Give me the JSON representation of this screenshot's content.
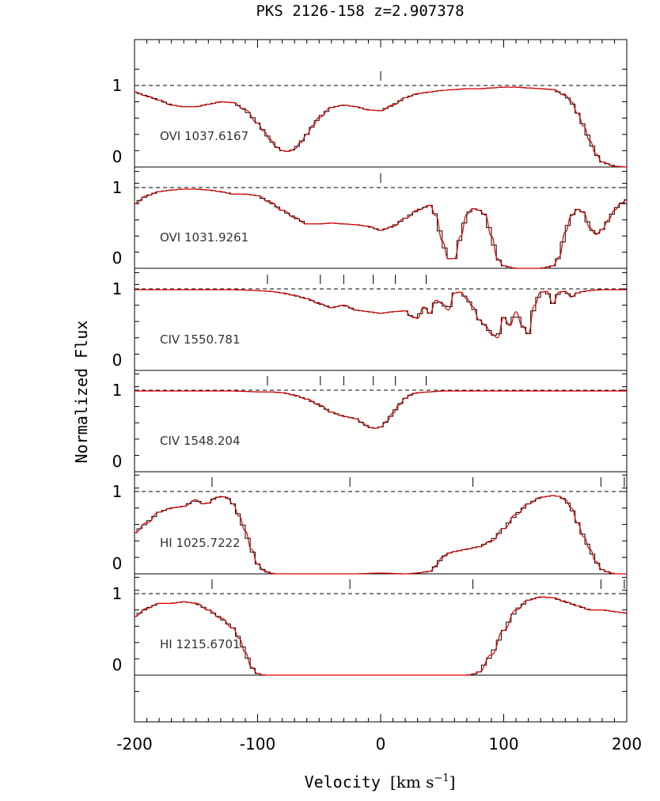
{
  "chart_data": {
    "type": "line",
    "title": "PKS 2126-158 z=2.907378",
    "xlabel": "Velocity",
    "xlabel_unit_prefix": "[km s",
    "xlabel_unit_exp": "−1",
    "xlabel_unit_suffix": "]",
    "ylabel": "Normalized Flux",
    "xlim": [
      -200,
      200
    ],
    "x_ticks": [
      "-200",
      "-100",
      "0",
      "100",
      "200"
    ],
    "x_tick_values": [
      -200,
      -100,
      0,
      100,
      200
    ],
    "y_tick_labels": [
      "1",
      "0"
    ],
    "outer_y_range": [
      -0.55,
      1.45
    ],
    "colors": {
      "data": "#000000",
      "model": "#e00000",
      "continuum": "#000000"
    },
    "series_legend": [
      "data (histogram)",
      "fit model"
    ],
    "panels": [
      {
        "label": "OVI 1037.6167",
        "component_marks": [
          0
        ],
        "x": [
          -200,
          -190,
          -180,
          -170,
          -160,
          -150,
          -140,
          -130,
          -120,
          -110,
          -100,
          -95,
          -90,
          -85,
          -80,
          -75,
          -70,
          -65,
          -60,
          -55,
          -50,
          -40,
          -30,
          -20,
          -10,
          0,
          10,
          20,
          30,
          40,
          50,
          60,
          70,
          80,
          90,
          100,
          110,
          120,
          130,
          140,
          150,
          155,
          160,
          165,
          170,
          175,
          180,
          190,
          200
        ],
        "y": [
          0.92,
          0.87,
          0.82,
          0.76,
          0.74,
          0.74,
          0.77,
          0.8,
          0.79,
          0.7,
          0.54,
          0.44,
          0.34,
          0.25,
          0.2,
          0.19,
          0.22,
          0.3,
          0.4,
          0.51,
          0.61,
          0.73,
          0.76,
          0.74,
          0.7,
          0.69,
          0.76,
          0.85,
          0.9,
          0.92,
          0.94,
          0.95,
          0.96,
          0.96,
          0.97,
          0.98,
          0.98,
          0.97,
          0.96,
          0.95,
          0.88,
          0.8,
          0.66,
          0.5,
          0.32,
          0.16,
          0.06,
          0.01,
          0.0
        ]
      },
      {
        "label": "OVI 1031.9261",
        "component_marks": [
          0
        ],
        "x": [
          -200,
          -190,
          -180,
          -170,
          -160,
          -150,
          -140,
          -130,
          -120,
          -110,
          -100,
          -90,
          -80,
          -70,
          -60,
          -50,
          -40,
          -30,
          -20,
          -10,
          0,
          10,
          20,
          30,
          40,
          45,
          50,
          55,
          60,
          65,
          70,
          75,
          80,
          85,
          90,
          95,
          100,
          110,
          120,
          130,
          140,
          145,
          150,
          155,
          160,
          165,
          170,
          175,
          180,
          185,
          190,
          195,
          200
        ],
        "y": [
          0.8,
          0.9,
          0.95,
          0.97,
          0.98,
          0.98,
          0.97,
          0.95,
          0.92,
          0.92,
          0.9,
          0.82,
          0.72,
          0.63,
          0.55,
          0.55,
          0.56,
          0.55,
          0.54,
          0.52,
          0.47,
          0.52,
          0.62,
          0.72,
          0.78,
          0.65,
          0.34,
          0.12,
          0.12,
          0.4,
          0.67,
          0.74,
          0.72,
          0.66,
          0.4,
          0.12,
          0.03,
          0.0,
          0.0,
          0.0,
          0.03,
          0.14,
          0.45,
          0.65,
          0.73,
          0.69,
          0.5,
          0.42,
          0.48,
          0.6,
          0.72,
          0.8,
          0.85
        ]
      },
      {
        "label": "CIV 1550.781",
        "component_marks": [
          -92,
          -49,
          -30,
          -6,
          12,
          37
        ],
        "x": [
          -200,
          -180,
          -160,
          -140,
          -120,
          -100,
          -90,
          -80,
          -70,
          -60,
          -50,
          -40,
          -30,
          -20,
          -10,
          0,
          10,
          20,
          25,
          30,
          35,
          40,
          45,
          50,
          55,
          60,
          65,
          70,
          75,
          80,
          85,
          90,
          95,
          100,
          105,
          110,
          115,
          120,
          125,
          130,
          135,
          140,
          145,
          150,
          155,
          160,
          165,
          170,
          180,
          190,
          200
        ],
        "y": [
          0.99,
          0.99,
          0.99,
          0.99,
          0.99,
          0.98,
          0.97,
          0.95,
          0.92,
          0.88,
          0.82,
          0.77,
          0.8,
          0.74,
          0.72,
          0.7,
          0.72,
          0.73,
          0.66,
          0.64,
          0.78,
          0.7,
          0.86,
          0.82,
          0.74,
          0.95,
          0.96,
          0.88,
          0.78,
          0.62,
          0.55,
          0.45,
          0.4,
          0.65,
          0.55,
          0.72,
          0.55,
          0.45,
          0.8,
          0.96,
          0.97,
          0.82,
          0.96,
          0.97,
          0.9,
          0.95,
          0.97,
          0.98,
          0.99,
          0.99,
          0.99
        ]
      },
      {
        "label": "CIV 1548.204",
        "component_marks": [
          -92,
          -49,
          -30,
          -6,
          12,
          37
        ],
        "x": [
          -200,
          -160,
          -120,
          -100,
          -90,
          -80,
          -70,
          -60,
          -50,
          -40,
          -30,
          -20,
          -15,
          -10,
          -5,
          0,
          5,
          10,
          15,
          20,
          25,
          30,
          40,
          50,
          60,
          80,
          100,
          120,
          140,
          160,
          180,
          200
        ],
        "y": [
          0.99,
          0.99,
          0.99,
          0.98,
          0.98,
          0.97,
          0.94,
          0.89,
          0.82,
          0.73,
          0.68,
          0.65,
          0.6,
          0.55,
          0.53,
          0.55,
          0.62,
          0.72,
          0.82,
          0.9,
          0.95,
          0.97,
          0.98,
          0.99,
          0.99,
          0.99,
          0.99,
          0.99,
          0.99,
          0.99,
          0.99,
          0.99
        ]
      },
      {
        "label": "HI 1025.7222",
        "component_marks": [
          -137,
          -25,
          75,
          179,
          198
        ],
        "x": [
          -200,
          -190,
          -180,
          -170,
          -160,
          -150,
          -145,
          -140,
          -135,
          -130,
          -125,
          -120,
          -115,
          -110,
          -105,
          -100,
          -95,
          -90,
          -85,
          -80,
          -70,
          -60,
          -40,
          -20,
          0,
          20,
          30,
          40,
          45,
          50,
          55,
          60,
          70,
          80,
          90,
          100,
          110,
          120,
          130,
          140,
          145,
          150,
          155,
          160,
          165,
          170,
          175,
          180,
          185,
          190,
          200
        ],
        "y": [
          0.5,
          0.62,
          0.75,
          0.8,
          0.82,
          0.9,
          0.85,
          0.86,
          0.92,
          0.94,
          0.93,
          0.85,
          0.7,
          0.52,
          0.3,
          0.12,
          0.04,
          0.01,
          0.0,
          0.0,
          0.0,
          0.0,
          0.0,
          0.0,
          0.01,
          0.0,
          0.01,
          0.03,
          0.1,
          0.2,
          0.25,
          0.27,
          0.3,
          0.33,
          0.4,
          0.55,
          0.72,
          0.85,
          0.93,
          0.95,
          0.94,
          0.9,
          0.8,
          0.62,
          0.45,
          0.3,
          0.15,
          0.05,
          0.02,
          0.0,
          0.0
        ]
      },
      {
        "label": "HI 1215.6701",
        "component_marks": [
          -137,
          -25,
          75,
          179,
          198
        ],
        "x": [
          -200,
          -190,
          -180,
          -170,
          -160,
          -150,
          -140,
          -130,
          -120,
          -115,
          -110,
          -105,
          -100,
          -95,
          -90,
          -80,
          -60,
          -40,
          -20,
          0,
          20,
          40,
          60,
          70,
          75,
          80,
          90,
          100,
          110,
          120,
          130,
          140,
          150,
          160,
          170,
          180,
          190,
          200
        ],
        "y": [
          0.72,
          0.82,
          0.88,
          0.88,
          0.9,
          0.88,
          0.8,
          0.7,
          0.58,
          0.45,
          0.28,
          0.1,
          0.02,
          0.0,
          0.0,
          0.0,
          0.0,
          0.0,
          0.0,
          0.0,
          0.0,
          0.0,
          0.0,
          0.0,
          0.01,
          0.04,
          0.25,
          0.55,
          0.8,
          0.92,
          0.96,
          0.95,
          0.9,
          0.85,
          0.8,
          0.8,
          0.78,
          0.76
        ]
      }
    ]
  }
}
